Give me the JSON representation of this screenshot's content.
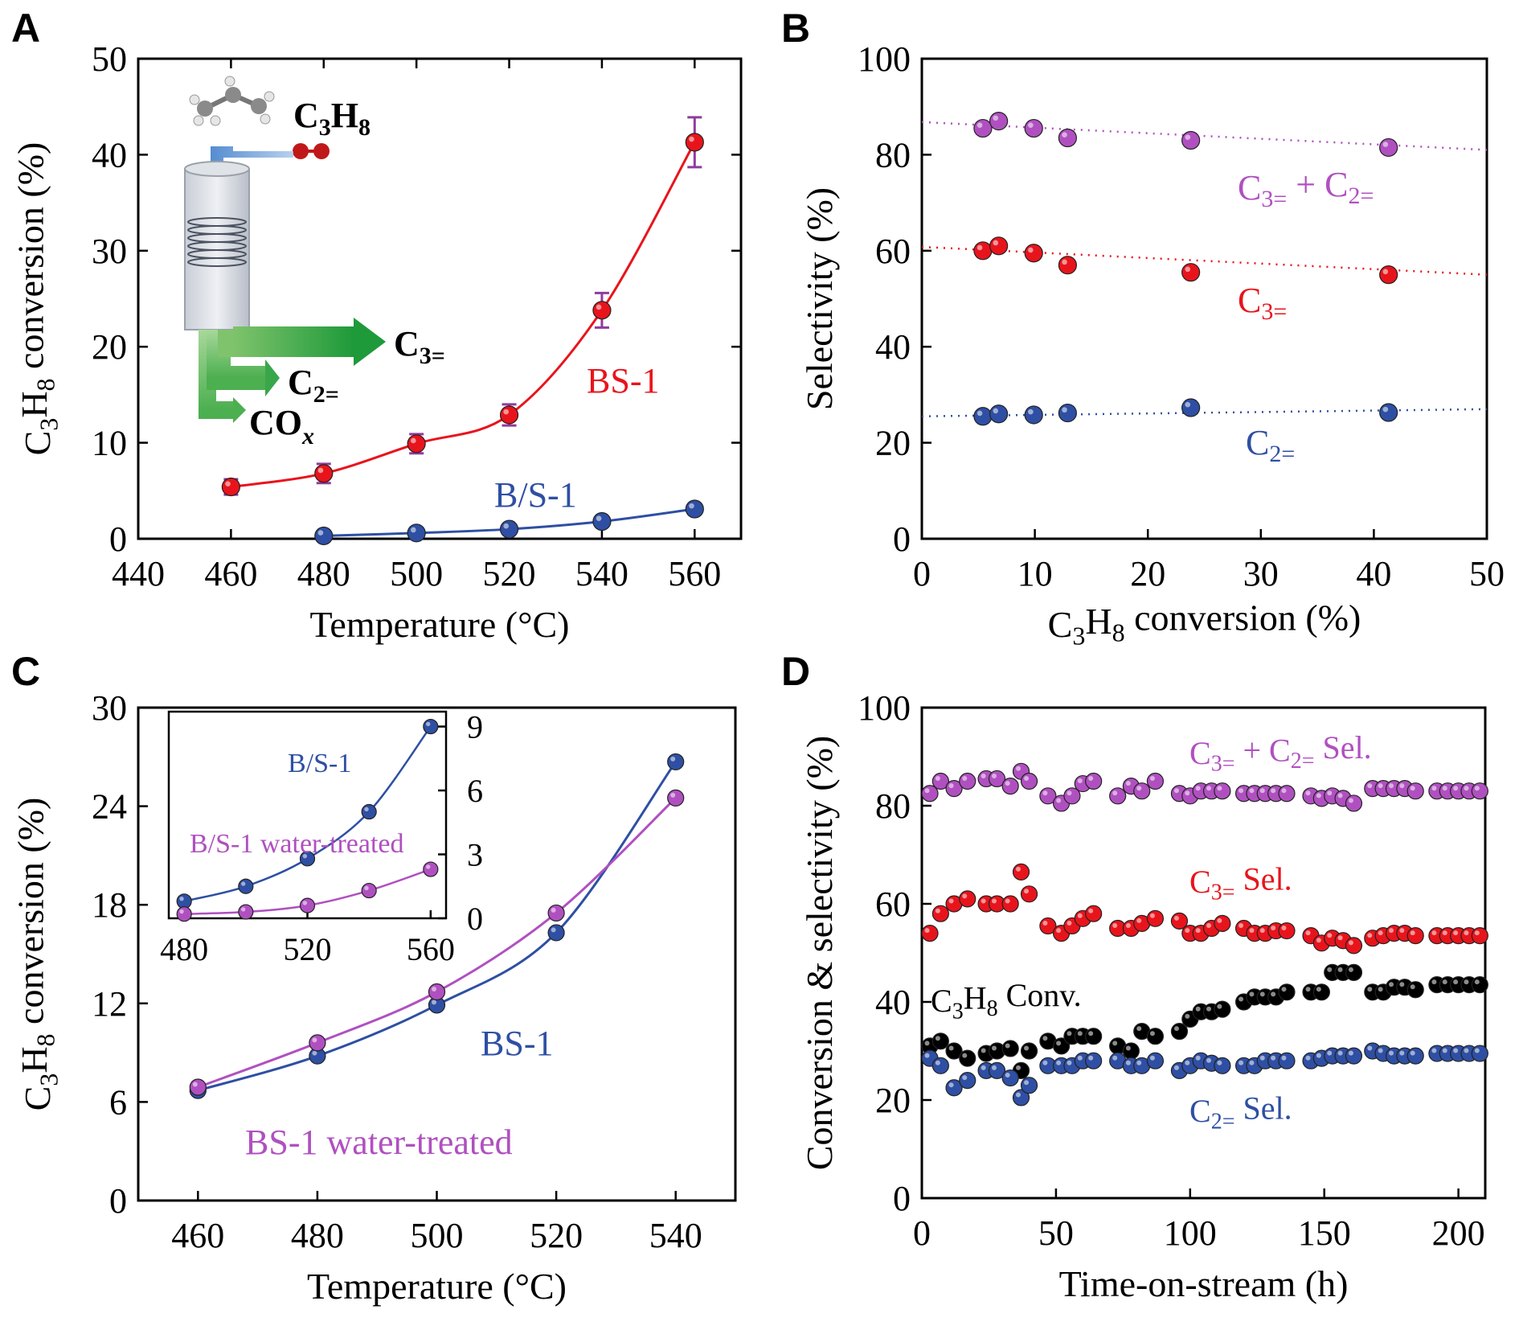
{
  "figure": {
    "panels": [
      "A",
      "B",
      "C",
      "D"
    ]
  },
  "chart_data": [
    {
      "panel": "A",
      "type": "line",
      "xlabel": "Temperature (°C)",
      "ylabel": "C3H8 conversion (%)",
      "xlim": [
        440,
        570
      ],
      "ylim": [
        0,
        50
      ],
      "xticks": [
        440,
        460,
        480,
        500,
        520,
        540,
        560
      ],
      "yticks": [
        0,
        10,
        20,
        30,
        40,
        50
      ],
      "series": [
        {
          "name": "BS-1",
          "color": "#e8141c",
          "x": [
            460,
            480,
            500,
            520,
            540,
            560
          ],
          "y": [
            5.4,
            6.8,
            9.9,
            12.9,
            23.8,
            41.3
          ],
          "yerr": [
            0.8,
            1.0,
            1.0,
            1.1,
            1.8,
            2.6
          ]
        },
        {
          "name": "B/S-1",
          "color": "#2e4fa3",
          "x": [
            480,
            500,
            520,
            540,
            560
          ],
          "y": [
            0.3,
            0.6,
            1.0,
            1.8,
            3.1
          ]
        }
      ],
      "schematic": {
        "feed": "C3H8",
        "products": [
          "C3=",
          "C2=",
          "COx"
        ]
      }
    },
    {
      "panel": "B",
      "type": "scatter",
      "xlabel": "C3H8 conversion (%)",
      "ylabel": "Selectivity (%)",
      "xlim": [
        0,
        50
      ],
      "ylim": [
        0,
        100
      ],
      "xticks": [
        0,
        10,
        20,
        30,
        40,
        50
      ],
      "yticks": [
        0,
        20,
        40,
        60,
        80,
        100
      ],
      "series": [
        {
          "name": "C3= + C2=",
          "color": "#b050c0",
          "x": [
            5.4,
            6.8,
            9.9,
            12.9,
            23.8,
            41.3
          ],
          "y": [
            85.5,
            87.0,
            85.5,
            83.5,
            83.0,
            81.5
          ],
          "trend": [
            [
              0,
              86.8
            ],
            [
              50,
              81.0
            ]
          ]
        },
        {
          "name": "C3=",
          "color": "#e8141c",
          "x": [
            5.4,
            6.8,
            9.9,
            12.9,
            23.8,
            41.3
          ],
          "y": [
            60.0,
            61.0,
            59.5,
            57.0,
            55.5,
            55.0
          ],
          "trend": [
            [
              0,
              60.8
            ],
            [
              50,
              55.0
            ]
          ]
        },
        {
          "name": "C2=",
          "color": "#2e4fa3",
          "x": [
            5.4,
            6.8,
            9.9,
            12.9,
            23.8,
            41.3
          ],
          "y": [
            25.5,
            26.0,
            25.8,
            26.2,
            27.3,
            26.3
          ],
          "trend": [
            [
              0,
              25.5
            ],
            [
              50,
              27.0
            ]
          ]
        }
      ]
    },
    {
      "panel": "C",
      "type": "line",
      "xlabel": "Temperature (°C)",
      "ylabel": "C3H8 conversion (%)",
      "xlim": [
        450,
        550
      ],
      "ylim": [
        0,
        30
      ],
      "xticks": [
        460,
        480,
        500,
        520,
        540
      ],
      "yticks": [
        0,
        6,
        12,
        18,
        24,
        30
      ],
      "series": [
        {
          "name": "BS-1",
          "color": "#2e4fa3",
          "x": [
            460,
            480,
            500,
            520,
            540
          ],
          "y": [
            6.7,
            8.8,
            11.9,
            16.3,
            26.7
          ]
        },
        {
          "name": "BS-1 water-treated",
          "color": "#b050c0",
          "x": [
            460,
            480,
            500,
            520,
            540
          ],
          "y": [
            6.9,
            9.6,
            12.7,
            17.5,
            24.5
          ]
        }
      ],
      "inset": {
        "xlim": [
          475,
          565
        ],
        "ylim": [
          0,
          9.7
        ],
        "xticks": [
          480,
          520,
          560
        ],
        "yticks": [
          0,
          3,
          6,
          9
        ],
        "series": [
          {
            "name": "B/S-1",
            "color": "#2e4fa3",
            "x": [
              480,
              500,
              520,
              540,
              560
            ],
            "y": [
              0.8,
              1.5,
              2.8,
              5.0,
              9.0
            ]
          },
          {
            "name": "B/S-1 water-treated",
            "color": "#b050c0",
            "x": [
              480,
              500,
              520,
              540,
              560
            ],
            "y": [
              0.2,
              0.3,
              0.6,
              1.3,
              2.3
            ]
          }
        ]
      }
    },
    {
      "panel": "D",
      "type": "scatter",
      "xlabel": "Time-on-stream (h)",
      "ylabel": "Conversion & selectivity (%)",
      "xlim": [
        0,
        210
      ],
      "ylim": [
        0,
        100
      ],
      "xticks": [
        0,
        50,
        100,
        150,
        200
      ],
      "yticks": [
        0,
        20,
        40,
        60,
        80,
        100
      ],
      "x": [
        3,
        7,
        12,
        17,
        24,
        28,
        33,
        37,
        40,
        47,
        52,
        56,
        60,
        64,
        73,
        78,
        82,
        87,
        96,
        100,
        104,
        108,
        112,
        120,
        124,
        128,
        132,
        136,
        145,
        149,
        153,
        157,
        161,
        168,
        172,
        176,
        180,
        184,
        192,
        196,
        200,
        204,
        208
      ],
      "series": [
        {
          "name": "C3= + C2= Sel.",
          "color": "#b050c0",
          "y": [
            82.5,
            85,
            83.5,
            85,
            85.5,
            85.5,
            84,
            87,
            85,
            82,
            80.5,
            82,
            84.5,
            85,
            82,
            84,
            83,
            85,
            82.5,
            82,
            83,
            83,
            83,
            82.5,
            82.5,
            82.5,
            82.5,
            82.5,
            82,
            81.5,
            82,
            81.5,
            80.5,
            83.5,
            83.5,
            83.5,
            83.5,
            83,
            83,
            83,
            83,
            83,
            83
          ]
        },
        {
          "name": "C3= Sel.",
          "color": "#e8141c",
          "y": [
            54,
            58,
            60,
            61,
            60,
            60,
            60,
            66.5,
            62,
            55.5,
            54,
            55.5,
            57,
            58,
            55,
            55,
            56,
            57,
            56.5,
            54,
            54,
            55,
            56,
            55,
            54,
            54,
            54.5,
            54.5,
            53.5,
            52,
            53,
            52.5,
            51.5,
            53,
            53.5,
            54,
            54,
            53.5,
            53.5,
            53.5,
            53.5,
            53.5,
            53.5
          ]
        },
        {
          "name": "C3H8 Conv.",
          "color": "#000000",
          "y": [
            31,
            32,
            30,
            28.5,
            29.5,
            30,
            30.5,
            26,
            30,
            32,
            31,
            33,
            33,
            33,
            31,
            30,
            34,
            33,
            34,
            36.5,
            38,
            38,
            38.5,
            40,
            41,
            41,
            41,
            42,
            42,
            42,
            46,
            46,
            46,
            42,
            42,
            43,
            43,
            42.5,
            43.5,
            43.5,
            43.5,
            43.5,
            43.5
          ]
        },
        {
          "name": "C2= Sel.",
          "color": "#2e4fa3",
          "y": [
            28.5,
            27,
            22.5,
            24,
            26,
            26,
            24.5,
            20.5,
            23,
            27,
            27,
            27,
            28,
            28,
            28,
            27,
            27,
            28,
            26,
            27,
            28,
            27.5,
            27,
            27,
            27,
            28,
            28,
            28,
            28,
            28.5,
            29,
            29,
            29,
            30,
            29.5,
            29,
            29,
            29,
            29.5,
            29.5,
            29.5,
            29.5,
            29.5
          ]
        }
      ]
    }
  ]
}
